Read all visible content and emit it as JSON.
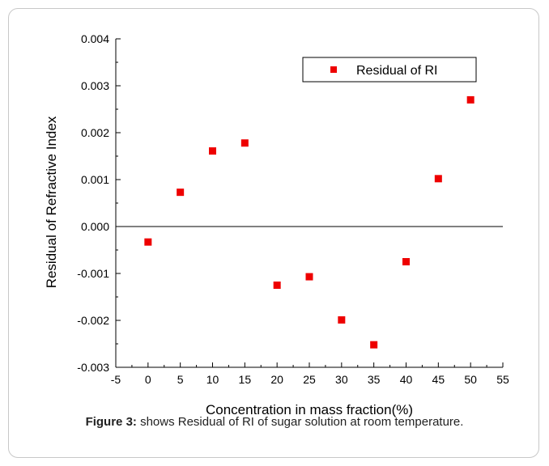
{
  "chart_data": {
    "type": "scatter",
    "title": "",
    "xlabel": "Concentration in mass fraction(%)",
    "ylabel": "Residual of Refractive Index",
    "xlim": [
      -5,
      55
    ],
    "ylim": [
      -0.003,
      0.004
    ],
    "x_ticks": [
      "-5",
      "0",
      "5",
      "10",
      "15",
      "20",
      "25",
      "30",
      "35",
      "40",
      "45",
      "50",
      "55"
    ],
    "y_ticks": [
      "-0.003",
      "-0.002",
      "-0.001",
      "0.000",
      "0.001",
      "0.002",
      "0.003",
      "0.004"
    ],
    "zero_line": true,
    "grid": false,
    "legend_position": "top-right",
    "series": [
      {
        "name": "Residual of RI",
        "color": "#ee0000",
        "marker": "square",
        "points": [
          {
            "x": 0,
            "y": -0.00033
          },
          {
            "x": 5,
            "y": 0.00073
          },
          {
            "x": 10,
            "y": 0.00161
          },
          {
            "x": 15,
            "y": 0.00178
          },
          {
            "x": 20,
            "y": -0.00125
          },
          {
            "x": 25,
            "y": -0.00107
          },
          {
            "x": 30,
            "y": -0.00199
          },
          {
            "x": 35,
            "y": -0.00252
          },
          {
            "x": 40,
            "y": -0.00075
          },
          {
            "x": 45,
            "y": 0.00102
          },
          {
            "x": 50,
            "y": 0.0027
          }
        ]
      }
    ]
  },
  "caption": {
    "label": "Figure 3:",
    "text": " shows Residual of RI of sugar solution at room temperature."
  }
}
